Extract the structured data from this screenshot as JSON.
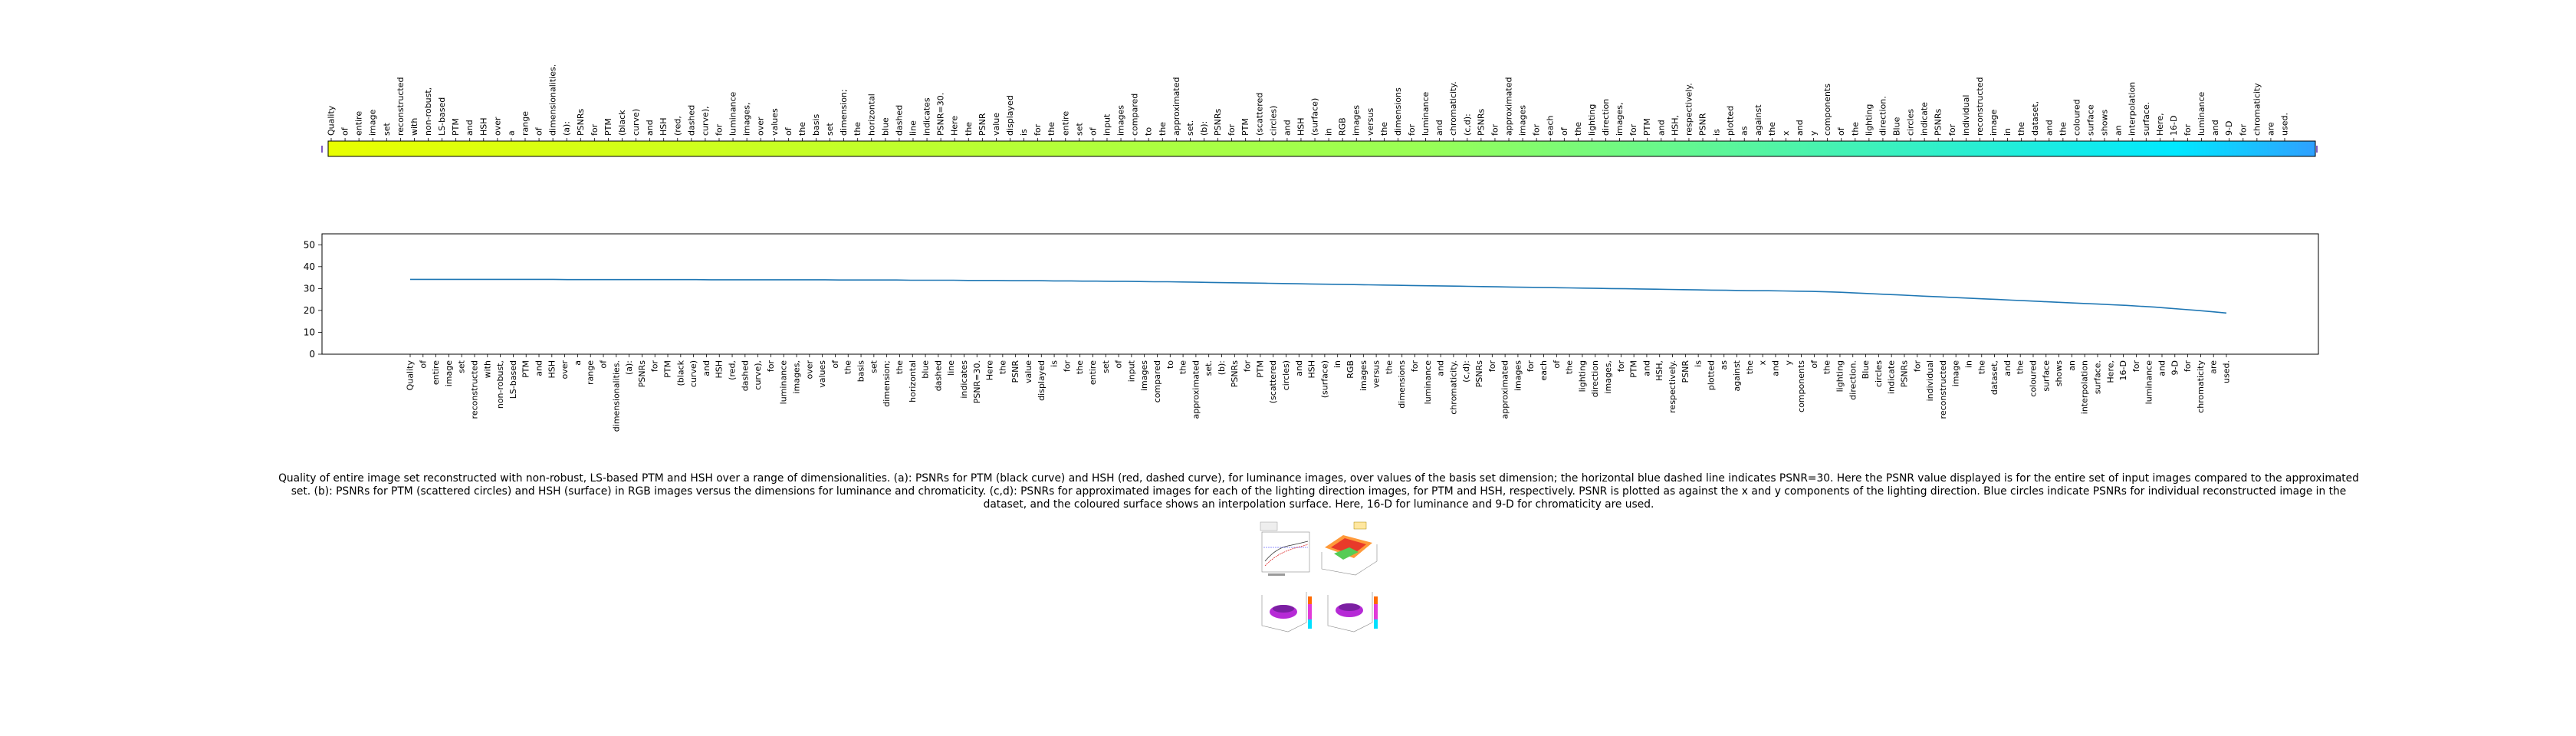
{
  "words": [
    "Quality",
    "of",
    "entire",
    "image",
    "set",
    "reconstructed",
    "with",
    "non-robust,",
    "LS-based",
    "PTM",
    "and",
    "HSH",
    "over",
    "a",
    "range",
    "of",
    "dimensionalities.",
    "(a):",
    "PSNRs",
    "for",
    "PTM",
    "(black",
    "curve)",
    "and",
    "HSH",
    "(red,",
    "dashed",
    "curve),",
    "for",
    "luminance",
    "images,",
    "over",
    "values",
    "of",
    "the",
    "basis",
    "set",
    "dimension;",
    "the",
    "horizontal",
    "blue",
    "dashed",
    "line",
    "indicates",
    "PSNR=30.",
    "Here",
    "the",
    "PSNR",
    "value",
    "displayed",
    "is",
    "for",
    "the",
    "entire",
    "set",
    "of",
    "input",
    "images",
    "compared",
    "to",
    "the",
    "approximated",
    "set.",
    "(b):",
    "PSNRs",
    "for",
    "PTM",
    "(scattered",
    "circles)",
    "and",
    "HSH",
    "(surface)",
    "in",
    "RGB",
    "images",
    "versus",
    "the",
    "dimensions",
    "for",
    "luminance",
    "and",
    "chromaticity.",
    "(c,d):",
    "PSNRs",
    "for",
    "approximated",
    "images",
    "for",
    "each",
    "of",
    "the",
    "lighting",
    "direction",
    "images,",
    "for",
    "PTM",
    "and",
    "HSH,",
    "respectively.",
    "PSNR",
    "is",
    "plotted",
    "as",
    "against",
    "the",
    "x",
    "and",
    "y",
    "components",
    "of",
    "the",
    "lighting",
    "direction.",
    "Blue",
    "circles",
    "indicate",
    "PSNRs",
    "for",
    "individual",
    "reconstructed",
    "image",
    "in",
    "the",
    "dataset,",
    "and",
    "the",
    "coloured",
    "surface",
    "shows",
    "an",
    "interpolation",
    "surface.",
    "Here,",
    "16-D",
    "for",
    "luminance",
    "and",
    "9-D",
    "for",
    "chromaticity",
    "are",
    "used."
  ],
  "caption": "Quality of entire image set reconstructed with non-robust, LS-based PTM and HSH over a range of dimensionalities. (a): PSNRs for PTM (black curve) and HSH (red, dashed curve), for luminance images, over values of the basis set dimension; the horizontal blue dashed line indicates PSNR=30. Here the PSNR value displayed is for the entire set of input images compared to the approximated set. (b): PSNRs for PTM (scattered circles) and HSH (surface) in RGB images versus the dimensions for luminance and chromaticity. (c,d): PSNRs for approximated images for each of the lighting direction images, for PTM and HSH, respectively. PSNR is plotted as against the x and y components of the lighting direction. Blue circles indicate PSNRs for individual reconstructed image in the dataset, and the coloured surface shows an interpolation surface. Here, 16-D for luminance and 9-D for chromaticity are used.",
  "colors": {
    "line": "#1f77b4",
    "colorbar_start": "#e8ff00",
    "colorbar_mid": "#99ff55",
    "colorbar_end": "#00e8ff",
    "colorbar_tail": "#2fa0ff"
  },
  "chart_data": [
    {
      "type": "heatmap",
      "x_tick_labels_source": "words",
      "orientation": "horizontal-colorbar"
    },
    {
      "type": "line",
      "x_tick_labels_source": "words",
      "ylim": [
        0,
        55
      ],
      "yticks": [
        "0",
        "10",
        "20",
        "30",
        "40",
        "50"
      ],
      "series": [
        {
          "values": [
            34.2,
            34.2,
            34.2,
            34.2,
            34.2,
            34.2,
            34.2,
            34.2,
            34.2,
            34.2,
            34.2,
            34.1,
            34.1,
            34.1,
            34.1,
            34.1,
            34.1,
            34.1,
            34.1,
            34.1,
            34.1,
            34.0,
            34.0,
            34.0,
            34.0,
            34.0,
            34.0,
            34.0,
            34.0,
            34.0,
            33.9,
            33.9,
            33.9,
            33.9,
            33.9,
            33.8,
            33.8,
            33.8,
            33.8,
            33.7,
            33.7,
            33.7,
            33.6,
            33.6,
            33.6,
            33.5,
            33.5,
            33.4,
            33.4,
            33.3,
            33.3,
            33.2,
            33.1,
            33.1,
            33.0,
            32.9,
            32.8,
            32.7,
            32.6,
            32.5,
            32.4,
            32.3,
            32.2,
            32.1,
            32.0,
            31.9,
            31.8,
            31.7,
            31.6,
            31.5,
            31.4,
            31.3,
            31.2,
            31.1,
            31.0,
            30.9,
            30.8,
            30.7,
            30.6,
            30.5,
            30.4,
            30.3,
            30.2,
            30.1,
            30.0,
            29.9,
            29.8,
            29.7,
            29.6,
            29.5,
            29.4,
            29.3,
            29.2,
            29.1,
            29.0,
            29.0,
            28.9,
            28.8,
            28.7,
            28.5,
            28.3,
            28.0,
            27.7,
            27.4,
            27.1,
            26.8,
            26.5,
            26.2,
            25.9,
            25.6,
            25.3,
            25.0,
            24.7,
            24.4,
            24.1,
            23.8,
            23.5,
            23.2,
            22.9,
            22.6,
            22.3,
            21.9,
            21.5,
            21.0,
            20.5,
            20.0,
            19.4,
            18.8
          ]
        }
      ]
    }
  ]
}
